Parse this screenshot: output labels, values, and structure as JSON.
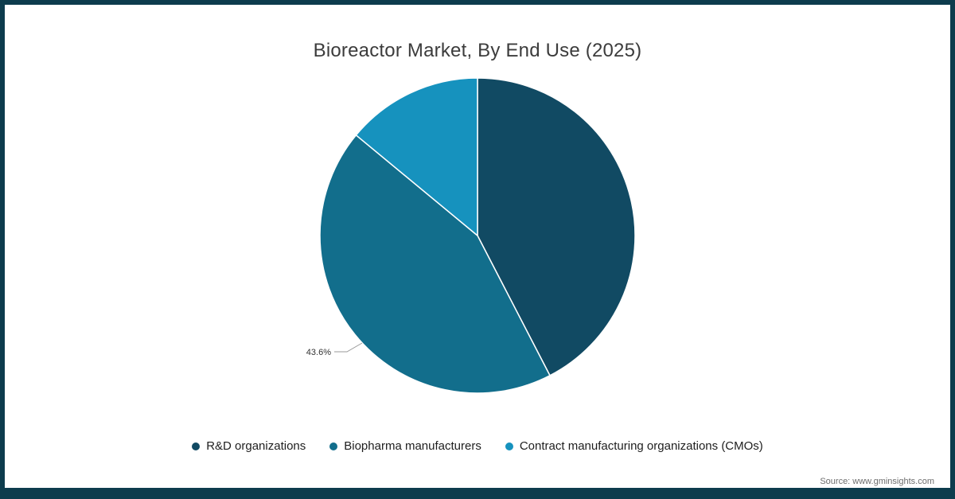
{
  "frame": {
    "border_color": "#0d3c4d",
    "background": "#ffffff"
  },
  "chart_data": {
    "type": "pie",
    "title": "Bioreactor Market, By End Use (2025)",
    "categories": [
      "R&D organizations",
      "Biopharma manufacturers",
      "Contract manufacturing organizations (CMOs)"
    ],
    "values": [
      42.4,
      43.6,
      14.0
    ],
    "colors": [
      "#114a63",
      "#126e8c",
      "#1692be"
    ],
    "start_angle_deg": 0,
    "direction": "clockwise",
    "legend_position": "bottom",
    "data_labels": [
      {
        "series": "Biopharma manufacturers",
        "text": "43.6%"
      }
    ]
  },
  "source": {
    "text": "Source: www.gminsights.com"
  }
}
